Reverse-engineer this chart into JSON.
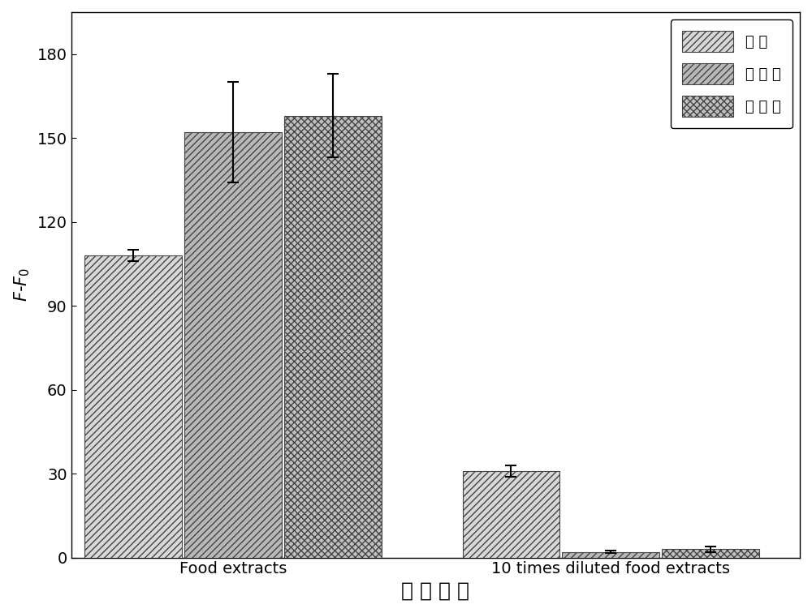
{
  "categories": [
    "Food extracts",
    "10 times diluted food extracts"
  ],
  "series": [
    {
      "name": "虞 镬",
      "values": [
        108,
        31
      ],
      "errors": [
        2,
        2
      ],
      "hatch": "////",
      "facecolor": "#d8d8d8",
      "edgecolor": "#444444"
    },
    {
      "name": "番 茄 镬",
      "values": [
        152,
        2
      ],
      "errors": [
        18,
        0.5
      ],
      "hatch": "////",
      "facecolor": "#b8b8b8",
      "edgecolor": "#444444"
    },
    {
      "name": "沙 拉 镬",
      "values": [
        158,
        3
      ],
      "errors": [
        15,
        1
      ],
      "hatch": "xxxx",
      "facecolor": "#c0c0c0",
      "edgecolor": "#444444"
    }
  ],
  "ylabel": "F-F$_0$",
  "xlabel": "实 际 样 品",
  "ylim": [
    0,
    195
  ],
  "yticks": [
    0,
    30,
    60,
    90,
    120,
    150,
    180
  ],
  "bar_width": 0.18,
  "background_color": "#f0f0f0",
  "axis_fontsize": 15,
  "tick_fontsize": 14,
  "legend_fontsize": 13,
  "xlabel_fontsize": 18
}
